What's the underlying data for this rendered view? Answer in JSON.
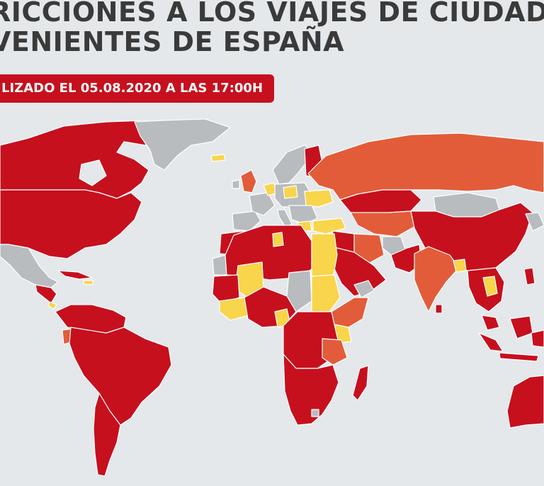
{
  "header": {
    "title_line1": "RICCIONES A LOS VIAJES DE CIUDADA",
    "title_line2": "VENIENTES DE ESPAÑA",
    "updated_badge": "LIZADO EL 05.08.2020 A LAS 17:00H"
  },
  "colors": {
    "background": "#e4e8eb",
    "red": "#c6101e",
    "orange": "#e25c3a",
    "yellow": "#f8d54a",
    "gray": "#b8bcbf",
    "title_text": "#3a3a3a"
  },
  "map": {
    "legend": []
  }
}
